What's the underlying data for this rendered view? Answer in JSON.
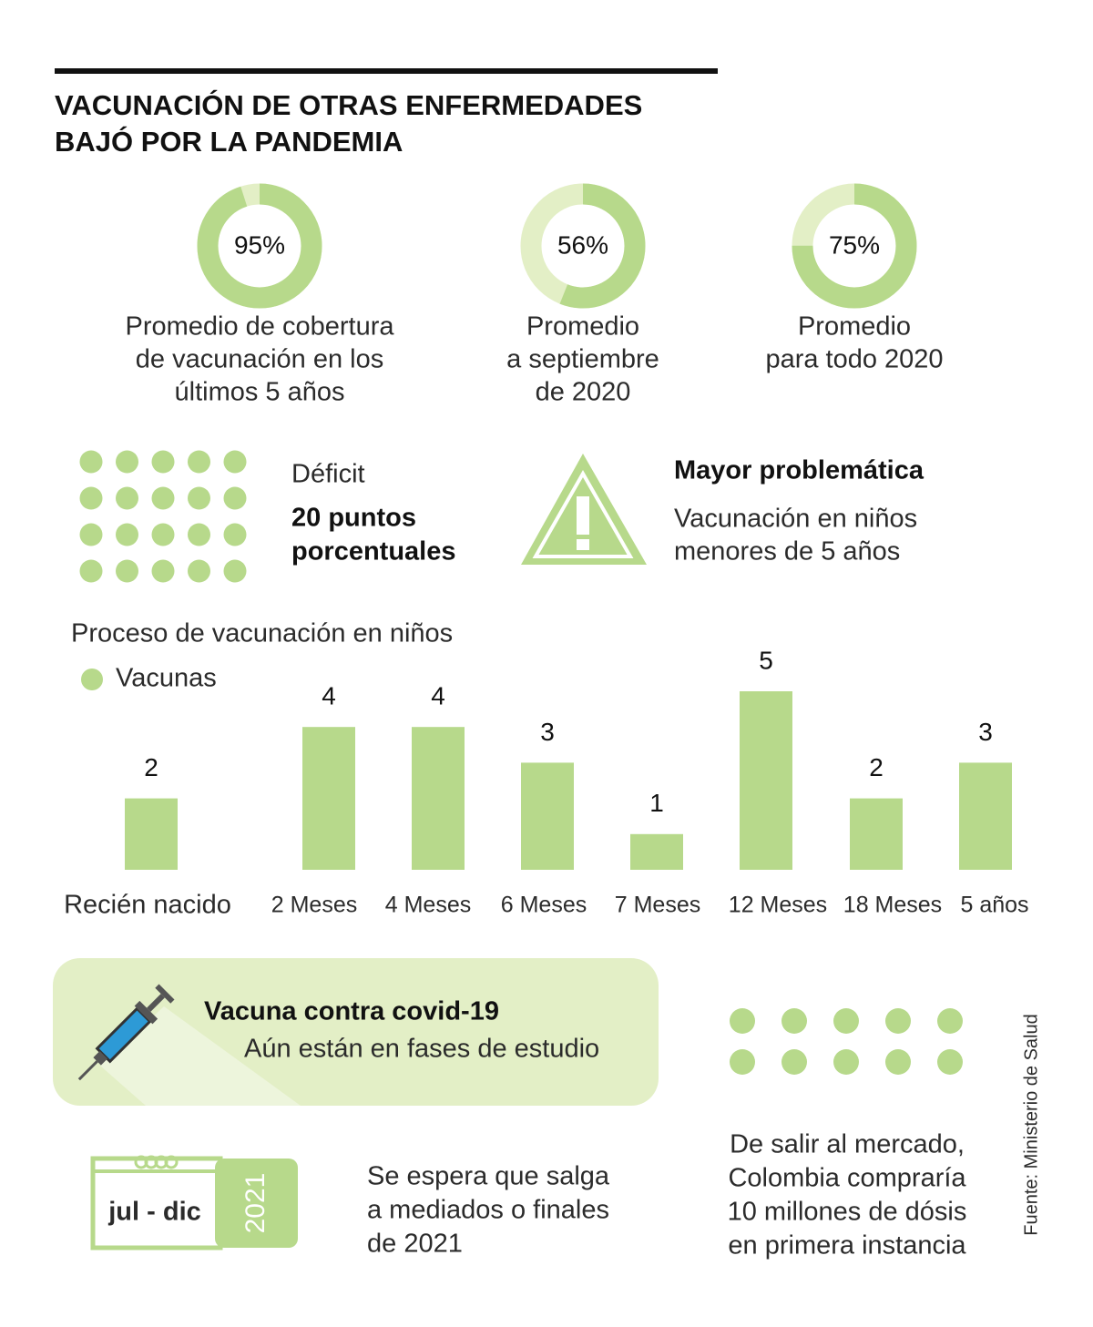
{
  "title": [
    "VACUNACIÓN DE OTRAS ENFERMEDADES",
    "BAJÓ POR LA PANDEMIA"
  ],
  "chart_data": [
    {
      "type": "donut",
      "values": [
        95
      ],
      "value_labels": [
        "95%"
      ],
      "caption": [
        "Promedio de cobertura",
        "de vacunación en los",
        "últimos 5 años"
      ],
      "color": "#b7d98b",
      "track_color": "#e3efc6"
    },
    {
      "type": "donut",
      "values": [
        56
      ],
      "value_labels": [
        "56%"
      ],
      "caption": [
        "Promedio",
        "a septiembre",
        "de 2020"
      ],
      "color": "#b7d98b",
      "track_color": "#e3efc6"
    },
    {
      "type": "donut",
      "values": [
        75
      ],
      "value_labels": [
        "75%"
      ],
      "caption": [
        "Promedio",
        "para todo 2020"
      ],
      "color": "#b7d98b",
      "track_color": "#e3efc6"
    },
    {
      "type": "bar",
      "title": "Proceso de vacunación en niños",
      "categories": [
        "Recién nacido",
        "2 Meses",
        "4 Meses",
        "6 Meses",
        "7 Meses",
        "12 Meses",
        "18 Meses",
        "5 años"
      ],
      "series": [
        {
          "name": "Vacunas",
          "color": "#b7d98b",
          "values": [
            2,
            4,
            4,
            3,
            1,
            5,
            2,
            3
          ]
        }
      ]
    }
  ],
  "deficit": {
    "label": "Déficit",
    "value": [
      "20 puntos",
      "porcentuales"
    ]
  },
  "warning": {
    "title": "Mayor problemática",
    "text": [
      "Vacunación en niños",
      "menores de 5 años"
    ]
  },
  "covid": {
    "title": "Vacuna contra covid-19",
    "text": "Aún están en fases de estudio"
  },
  "calendar": {
    "period": "jul - dic",
    "year": "2021"
  },
  "expected": [
    "Se espera que salga",
    "a mediados o finales",
    "de 2021"
  ],
  "purchase": [
    "De salir al mercado,",
    "Colombia compraría",
    "10 millones de dósis",
    "en primera instancia"
  ],
  "source": "Fuente: Ministerio de Salud"
}
